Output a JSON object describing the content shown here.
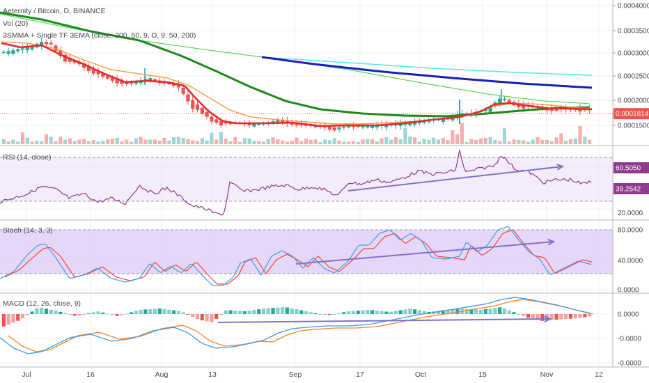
{
  "chart_data": {
    "type": "candlestick-multi-panel",
    "symbol_legend": "Aeternity / Bitcoin, D, BINANCE",
    "price_axis": {
      "ticks": [
        "0.0004000",
        "0.0003500",
        "0.0003000",
        "0.0002500",
        "0.0002000",
        "0.0001500"
      ],
      "current_price_label": "0.0001814",
      "current_price": 0.0001814
    },
    "x_axis": {
      "dates": [
        "Jul",
        "16",
        "Aug",
        "13",
        "Sep",
        "17",
        "Oct",
        "15",
        "Nov",
        "12"
      ]
    },
    "panels": [
      {
        "name": "price",
        "legends": [
          "Vol (20)",
          "3SMMA + Single TF 3EMA (close, 200, 50, 9, D, 9, 50, 200)"
        ],
        "moving_averages": [
          {
            "name": "green-long",
            "color": "#1b8a1b"
          },
          {
            "name": "light-green",
            "color": "#55d655"
          },
          {
            "name": "orange",
            "color": "#f59a3b"
          },
          {
            "name": "red",
            "color": "#e52b2b"
          },
          {
            "name": "blue",
            "color": "#1520b4"
          },
          {
            "name": "cyan",
            "color": "#5ee8e8"
          }
        ],
        "colors": {
          "up": "#26a69a",
          "down": "#ef5350",
          "volume_up": "#9fd6d0",
          "volume_down": "#f4b0ae"
        }
      },
      {
        "name": "rsi",
        "legend": "RSI (14, close)",
        "ticks": [
          "20.0000"
        ],
        "value_labels": [
          "60.5050",
          "39.2542"
        ],
        "line_color": "#8e3b8e",
        "band_color": "#e9dcf6"
      },
      {
        "name": "stoch",
        "legend": "Stoch (14, 3, 3)",
        "ticks": [
          "80.0000",
          "40.0000",
          "0.0000"
        ],
        "k_color": "#3d9be9",
        "d_color": "#f44336",
        "band_color": "#dcc6f7"
      },
      {
        "name": "macd",
        "legend": "MACD (12, 26, close, 9)",
        "ticks": [
          "0.0000",
          "-0.0000",
          "-0.0000"
        ],
        "macd_color": "#3d9be9",
        "signal_color": "#f5842a"
      }
    ],
    "trendlines_color": "#7b74c9"
  }
}
